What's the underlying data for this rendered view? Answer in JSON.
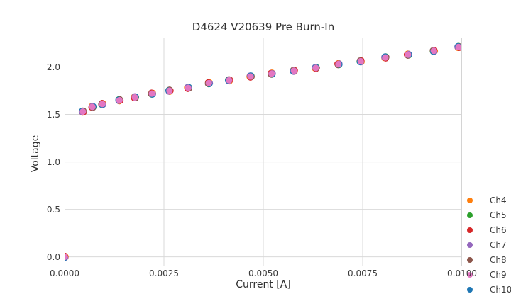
{
  "chart_data": {
    "type": "scatter",
    "title": "D4624 V20639 Pre Burn-In",
    "xlabel": "Current [A]",
    "ylabel": "Voltage",
    "xlim": [
      0.0,
      0.01
    ],
    "ylim": [
      -0.1,
      2.31
    ],
    "x_tick_labels": [
      "0.0000",
      "0.0025",
      "0.0050",
      "0.0075",
      "0.0100"
    ],
    "x_tick_values": [
      0.0,
      0.0025,
      0.005,
      0.0075,
      0.01
    ],
    "y_tick_labels": [
      "0.0",
      "0.5",
      "1.0",
      "1.5",
      "2.0"
    ],
    "y_tick_values": [
      0.0,
      0.5,
      1.0,
      1.5,
      2.0
    ],
    "grid": true,
    "legend_position": "lower right",
    "legend_frame": false,
    "overlap_note": "All seven channel curves overlap within marker size; Ch9 (pink) markers are visible on top with tiny colored fringes of the other channels.",
    "x": [
      0.0,
      0.00046,
      0.0007,
      0.00095,
      0.00138,
      0.00177,
      0.0022,
      0.00264,
      0.00311,
      0.00363,
      0.00414,
      0.00468,
      0.00521,
      0.00577,
      0.00632,
      0.00689,
      0.00745,
      0.00807,
      0.00864,
      0.00929,
      0.00991
    ],
    "series": [
      {
        "name": "Ch4",
        "color": "#ff7f0e",
        "values": [
          0.0,
          1.53,
          1.58,
          1.61,
          1.65,
          1.68,
          1.72,
          1.75,
          1.78,
          1.83,
          1.86,
          1.9,
          1.93,
          1.96,
          1.99,
          2.03,
          2.06,
          2.1,
          2.13,
          2.17,
          2.21
        ]
      },
      {
        "name": "Ch5",
        "color": "#2ca02c",
        "values": [
          0.0,
          1.53,
          1.58,
          1.61,
          1.65,
          1.68,
          1.72,
          1.75,
          1.78,
          1.83,
          1.86,
          1.9,
          1.93,
          1.96,
          1.99,
          2.03,
          2.06,
          2.1,
          2.13,
          2.17,
          2.21
        ]
      },
      {
        "name": "Ch6",
        "color": "#d62728",
        "values": [
          0.0,
          1.53,
          1.58,
          1.61,
          1.65,
          1.68,
          1.72,
          1.75,
          1.78,
          1.83,
          1.86,
          1.9,
          1.93,
          1.96,
          1.99,
          2.03,
          2.06,
          2.1,
          2.13,
          2.17,
          2.21
        ]
      },
      {
        "name": "Ch7",
        "color": "#9467bd",
        "values": [
          0.0,
          1.53,
          1.58,
          1.61,
          1.65,
          1.68,
          1.72,
          1.75,
          1.78,
          1.83,
          1.86,
          1.9,
          1.93,
          1.96,
          1.99,
          2.03,
          2.06,
          2.1,
          2.13,
          2.17,
          2.21
        ]
      },
      {
        "name": "Ch8",
        "color": "#8c564b",
        "values": [
          0.0,
          1.53,
          1.58,
          1.61,
          1.65,
          1.68,
          1.72,
          1.75,
          1.78,
          1.83,
          1.86,
          1.9,
          1.93,
          1.96,
          1.99,
          2.03,
          2.06,
          2.1,
          2.13,
          2.17,
          2.21
        ]
      },
      {
        "name": "Ch9",
        "color": "#e377c2",
        "values": [
          0.0,
          1.53,
          1.58,
          1.61,
          1.65,
          1.68,
          1.72,
          1.75,
          1.78,
          1.83,
          1.86,
          1.9,
          1.93,
          1.96,
          1.99,
          2.03,
          2.06,
          2.1,
          2.13,
          2.17,
          2.21
        ]
      },
      {
        "name": "Ch10",
        "color": "#1f77b4",
        "values": [
          0.0,
          1.53,
          1.58,
          1.61,
          1.65,
          1.68,
          1.72,
          1.75,
          1.78,
          1.83,
          1.86,
          1.9,
          1.93,
          1.96,
          1.99,
          2.03,
          2.06,
          2.1,
          2.13,
          2.17,
          2.21
        ]
      }
    ],
    "marker_radius_px": 4.6,
    "colors": {
      "background": "#ffffff",
      "grid": "#d9d9d9",
      "spine": "#d4d4d4",
      "text": "#3c3c3c",
      "title_text": "#333333"
    }
  }
}
